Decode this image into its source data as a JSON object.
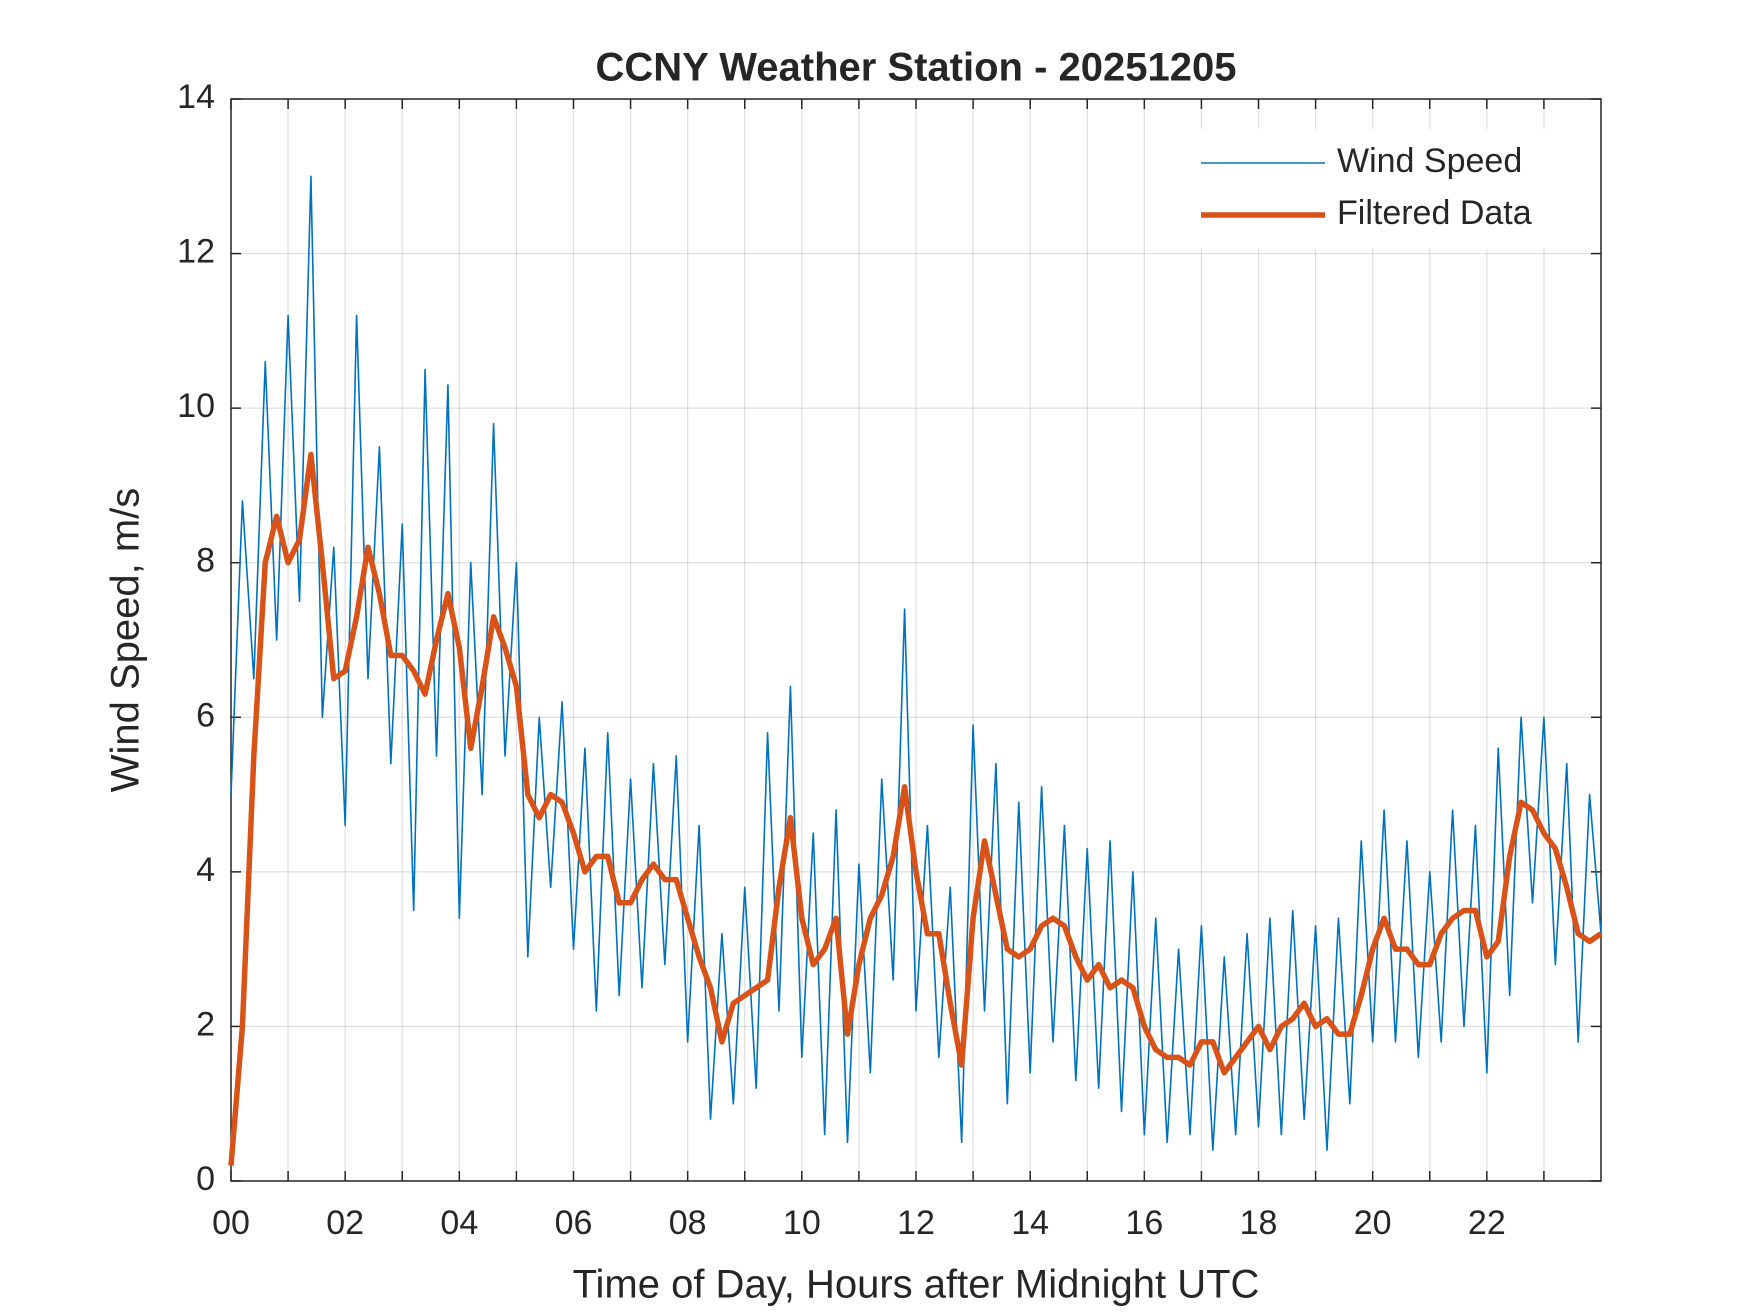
{
  "chart_data": {
    "type": "line",
    "title": "CCNY Weather Station - 20251205",
    "xlabel": "Time of Day, Hours after Midnight UTC",
    "ylabel": "Wind Speed, m/s",
    "x": [
      0,
      0.2,
      0.4,
      0.6,
      0.8,
      1,
      1.2,
      1.4,
      1.6,
      1.8,
      2,
      2.2,
      2.4,
      2.6,
      2.8,
      3,
      3.2,
      3.4,
      3.6,
      3.8,
      4,
      4.2,
      4.4,
      4.6,
      4.8,
      5,
      5.2,
      5.4,
      5.6,
      5.8,
      6,
      6.2,
      6.4,
      6.6,
      6.8,
      7,
      7.2,
      7.4,
      7.6,
      7.8,
      8,
      8.2,
      8.4,
      8.6,
      8.8,
      9,
      9.2,
      9.4,
      9.6,
      9.8,
      10,
      10.2,
      10.4,
      10.6,
      10.8,
      11,
      11.2,
      11.4,
      11.6,
      11.8,
      12,
      12.2,
      12.4,
      12.6,
      12.8,
      13,
      13.2,
      13.4,
      13.6,
      13.8,
      14,
      14.2,
      14.4,
      14.6,
      14.8,
      15,
      15.2,
      15.4,
      15.6,
      15.8,
      16,
      16.2,
      16.4,
      16.6,
      16.8,
      17,
      17.2,
      17.4,
      17.6,
      17.8,
      18,
      18.2,
      18.4,
      18.6,
      18.8,
      19,
      19.2,
      19.4,
      19.6,
      19.8,
      20,
      20.2,
      20.4,
      20.6,
      20.8,
      21,
      21.2,
      21.4,
      21.6,
      21.8,
      22,
      22.2,
      22.4,
      22.6,
      22.8,
      23,
      23.2,
      23.4,
      23.6,
      23.8,
      24
    ],
    "series": [
      {
        "name": "Wind Speed",
        "color": "#0072bd",
        "values": [
          5.0,
          8.8,
          6.5,
          10.6,
          7.0,
          11.2,
          7.5,
          13.0,
          6.0,
          8.2,
          4.6,
          11.2,
          6.5,
          9.5,
          5.4,
          8.5,
          3.5,
          10.5,
          5.5,
          10.3,
          3.4,
          8.0,
          5.0,
          9.8,
          5.5,
          8.0,
          2.9,
          6.0,
          3.8,
          6.2,
          3.0,
          5.6,
          2.2,
          5.8,
          2.4,
          5.2,
          2.5,
          5.4,
          2.8,
          5.5,
          1.8,
          4.6,
          0.8,
          3.2,
          1.0,
          3.8,
          1.2,
          5.8,
          2.2,
          6.4,
          1.6,
          4.5,
          0.6,
          4.8,
          0.5,
          4.1,
          1.4,
          5.2,
          2.6,
          7.4,
          2.2,
          4.6,
          1.6,
          3.8,
          0.5,
          5.9,
          2.2,
          5.4,
          1.0,
          4.9,
          1.4,
          5.1,
          1.8,
          4.6,
          1.3,
          4.3,
          1.2,
          4.4,
          0.9,
          4.0,
          0.6,
          3.4,
          0.5,
          3.0,
          0.6,
          3.3,
          0.4,
          2.9,
          0.6,
          3.2,
          0.7,
          3.4,
          0.6,
          3.5,
          0.8,
          3.3,
          0.4,
          3.4,
          1.0,
          4.4,
          1.8,
          4.8,
          1.8,
          4.4,
          1.6,
          4.0,
          1.8,
          4.8,
          2.0,
          4.6,
          1.4,
          5.6,
          2.4,
          6.0,
          3.6,
          6.0,
          2.8,
          5.4,
          1.8,
          5.0,
          3.2
        ]
      },
      {
        "name": "Filtered Data",
        "color": "#d95319",
        "values": [
          0.2,
          2.0,
          5.5,
          8.0,
          8.6,
          8.0,
          8.3,
          9.4,
          8.0,
          6.5,
          6.6,
          7.3,
          8.2,
          7.6,
          6.8,
          6.8,
          6.6,
          6.3,
          7.0,
          7.6,
          6.9,
          5.6,
          6.4,
          7.3,
          6.9,
          6.4,
          5.0,
          4.7,
          5.0,
          4.9,
          4.5,
          4.0,
          4.2,
          4.2,
          3.6,
          3.6,
          3.9,
          4.1,
          3.9,
          3.9,
          3.4,
          2.9,
          2.5,
          1.8,
          2.3,
          2.4,
          2.5,
          2.6,
          3.8,
          4.7,
          3.4,
          2.8,
          3.0,
          3.4,
          1.9,
          2.8,
          3.4,
          3.7,
          4.2,
          5.1,
          4.0,
          3.2,
          3.2,
          2.3,
          1.5,
          3.4,
          4.4,
          3.7,
          3.0,
          2.9,
          3.0,
          3.3,
          3.4,
          3.3,
          2.9,
          2.6,
          2.8,
          2.5,
          2.6,
          2.5,
          2.0,
          1.7,
          1.6,
          1.6,
          1.5,
          1.8,
          1.8,
          1.4,
          1.6,
          1.8,
          2.0,
          1.7,
          2.0,
          2.1,
          2.3,
          2.0,
          2.1,
          1.9,
          1.9,
          2.4,
          3.0,
          3.4,
          3.0,
          3.0,
          2.8,
          2.8,
          3.2,
          3.4,
          3.5,
          3.5,
          2.9,
          3.1,
          4.2,
          4.9,
          4.8,
          4.5,
          4.3,
          3.8,
          3.2,
          3.1,
          3.2
        ]
      }
    ],
    "xlim": [
      0,
      24
    ],
    "xticks": [
      {
        "value": 0,
        "label": "00"
      },
      {
        "value": 2,
        "label": "02"
      },
      {
        "value": 4,
        "label": "04"
      },
      {
        "value": 6,
        "label": "06"
      },
      {
        "value": 8,
        "label": "08"
      },
      {
        "value": 10,
        "label": "10"
      },
      {
        "value": 12,
        "label": "12"
      },
      {
        "value": 14,
        "label": "14"
      },
      {
        "value": 16,
        "label": "16"
      },
      {
        "value": 18,
        "label": "18"
      },
      {
        "value": 20,
        "label": "20"
      },
      {
        "value": 22,
        "label": "22"
      }
    ],
    "xminorticks": [
      1,
      3,
      5,
      7,
      9,
      11,
      13,
      15,
      17,
      19,
      21,
      23
    ],
    "ylim": [
      0,
      14
    ],
    "yticks": [
      0,
      2,
      4,
      6,
      8,
      10,
      12,
      14
    ],
    "grid": true,
    "legend": "top-right"
  }
}
